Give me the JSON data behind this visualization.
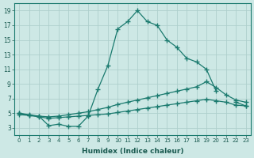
{
  "xlabel": "Humidex (Indice chaleur)",
  "ylabel": "",
  "background_color": "#cde8e5",
  "grid_color": "#aecfcc",
  "line_color": "#1a7a6e",
  "xlim": [
    -0.5,
    23.5
  ],
  "ylim": [
    2,
    20
  ],
  "yticks": [
    3,
    5,
    7,
    9,
    11,
    13,
    15,
    17,
    19
  ],
  "xticks": [
    0,
    1,
    2,
    3,
    4,
    5,
    6,
    7,
    8,
    9,
    10,
    11,
    12,
    13,
    14,
    15,
    16,
    17,
    18,
    19,
    20,
    21,
    22,
    23
  ],
  "figsize": [
    3.2,
    2.0
  ],
  "dpi": 100,
  "series": [
    {
      "x": [
        0,
        1,
        2,
        3,
        4,
        5,
        6,
        7,
        8,
        9,
        10,
        11,
        12,
        13,
        14,
        15,
        16,
        17,
        18,
        19,
        20,
        21,
        22,
        23
      ],
      "y": [
        5.0,
        4.7,
        4.6,
        3.3,
        3.5,
        3.2,
        3.2,
        4.6,
        8.3,
        11.5,
        16.5,
        17.5,
        19.0,
        17.5,
        17.0,
        15.0,
        14.0,
        12.5,
        12.0,
        11.0,
        8.0,
        null,
        6.5,
        6.0
      ]
    },
    {
      "x": [
        0,
        1,
        2,
        3,
        4,
        5,
        6,
        7,
        8,
        9,
        10,
        11,
        12,
        13,
        14,
        15,
        16,
        17,
        18,
        19,
        20,
        21,
        22,
        23
      ],
      "y": [
        5.0,
        4.8,
        4.6,
        4.5,
        4.6,
        4.8,
        5.0,
        5.2,
        5.5,
        5.8,
        6.2,
        6.5,
        6.8,
        7.1,
        7.4,
        7.7,
        8.0,
        8.3,
        8.6,
        9.3,
        8.5,
        7.5,
        6.8,
        6.5
      ]
    },
    {
      "x": [
        0,
        1,
        2,
        3,
        4,
        5,
        6,
        7,
        8,
        9,
        10,
        11,
        12,
        13,
        14,
        15,
        16,
        17,
        18,
        19,
        20,
        21,
        22,
        23
      ],
      "y": [
        4.8,
        4.7,
        4.5,
        4.3,
        4.4,
        4.5,
        4.6,
        4.7,
        4.8,
        4.9,
        5.1,
        5.3,
        5.5,
        5.7,
        5.9,
        6.1,
        6.3,
        6.5,
        6.7,
        6.9,
        6.7,
        6.5,
        6.1,
        6.0
      ]
    }
  ]
}
